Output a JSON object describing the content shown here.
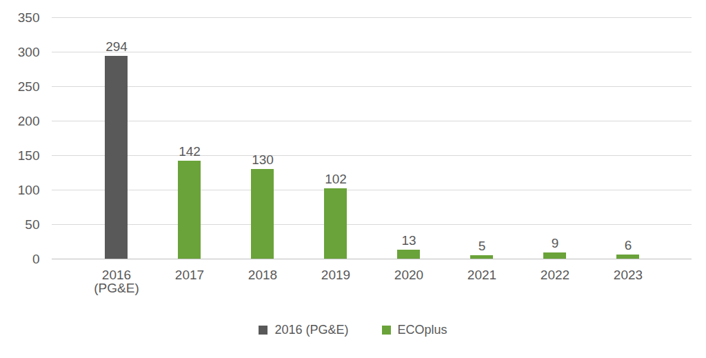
{
  "chart_data": {
    "type": "bar",
    "categories": [
      "2016 (PG&E)",
      "2017",
      "2018",
      "2019",
      "2020",
      "2021",
      "2022",
      "2023"
    ],
    "series": [
      {
        "name": "2016 (PG&E)",
        "color": "#595959",
        "values": [
          294,
          null,
          null,
          null,
          null,
          null,
          null,
          null
        ]
      },
      {
        "name": "ECOplus",
        "color": "#6aa339",
        "values": [
          null,
          142,
          130,
          102,
          13,
          5,
          9,
          6
        ]
      }
    ],
    "ylim": [
      0,
      350
    ],
    "yticks": [
      0,
      50,
      100,
      150,
      200,
      250,
      300,
      350
    ],
    "grid": true,
    "data_labels": true,
    "legend": "bottom"
  }
}
